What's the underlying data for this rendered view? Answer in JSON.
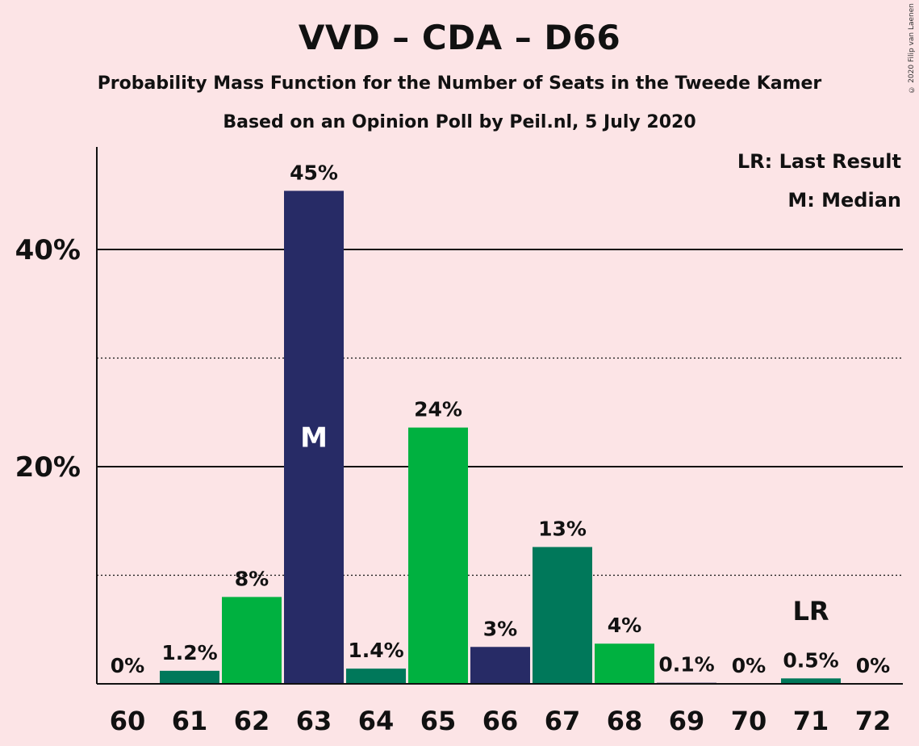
{
  "header": {
    "title": "VVD – CDA – D66",
    "subtitle": "Probability Mass Function for the Number of Seats in the Tweede Kamer",
    "subtitle2": "Based on an Opinion Poll by Peil.nl, 5 July 2020",
    "copyright": "© 2020 Filip van Laenen"
  },
  "legend": {
    "last_result": "LR: Last Result",
    "median": "M: Median"
  },
  "chart_data": {
    "type": "bar",
    "categories": [
      "60",
      "61",
      "62",
      "63",
      "64",
      "65",
      "66",
      "67",
      "68",
      "69",
      "70",
      "71",
      "72"
    ],
    "values": [
      0,
      1.2,
      8,
      45.4,
      1.4,
      23.6,
      3.4,
      12.6,
      3.7,
      0.1,
      0,
      0.5,
      0
    ],
    "labels": [
      "0%",
      "1.2%",
      "8%",
      "45%",
      "1.4%",
      "24%",
      "3%",
      "13%",
      "4%",
      "0.1%",
      "0%",
      "0.5%",
      "0%"
    ],
    "bar_colors": [
      "#00b140",
      "#00785a",
      "#00b140",
      "#272b66",
      "#00785a",
      "#00b140",
      "#272b66",
      "#00785a",
      "#00b140",
      "#272b66",
      "#00785a",
      "#00785a",
      "#00b140"
    ],
    "ylim": [
      0,
      49
    ],
    "yticks": [
      {
        "value": 20,
        "label": "20%"
      },
      {
        "value": 40,
        "label": "40%"
      }
    ],
    "minor_gridlines": [
      10,
      30
    ],
    "median": {
      "category": "63",
      "marker": "M"
    },
    "last_result": {
      "category": "71",
      "marker": "LR"
    },
    "grid": true,
    "legend_position": "top-right"
  }
}
